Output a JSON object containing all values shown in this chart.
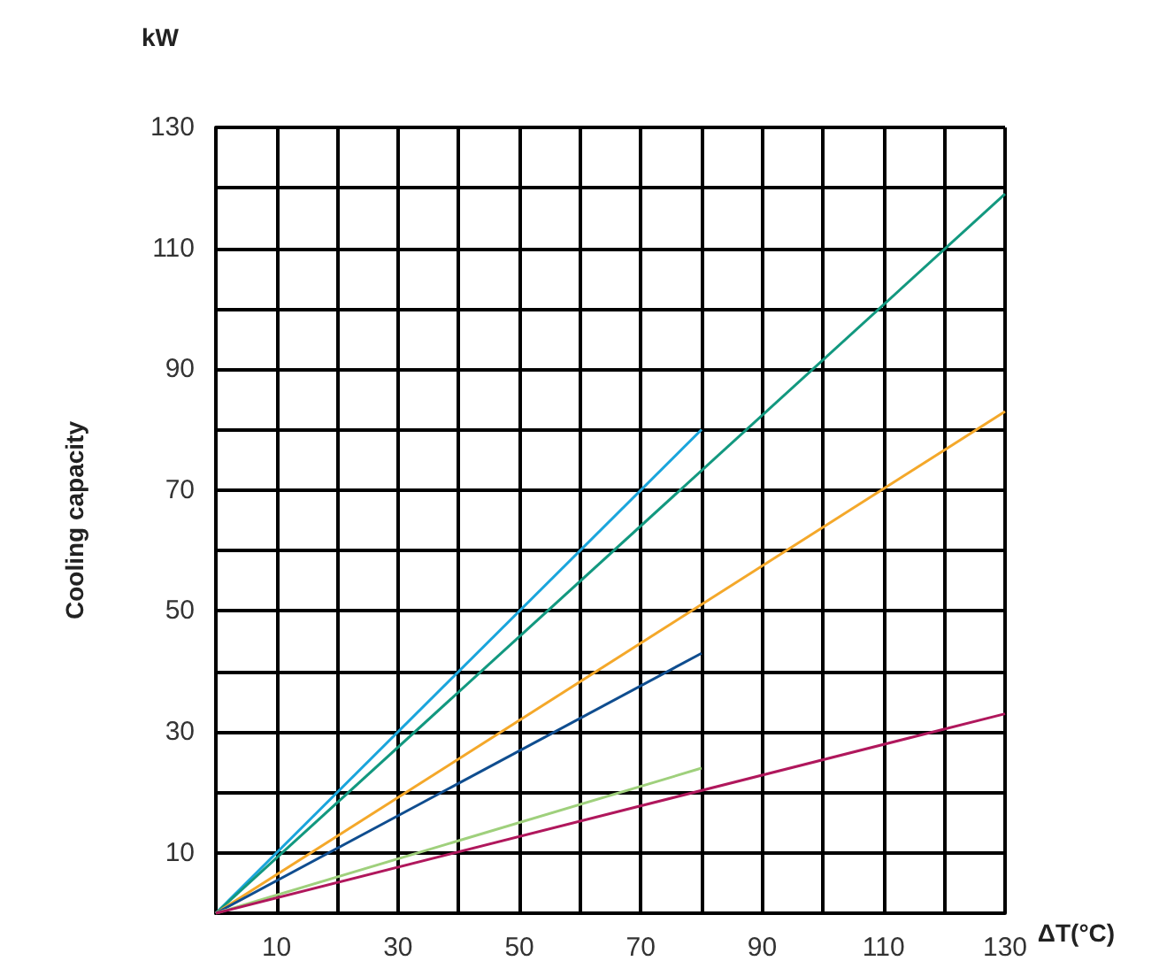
{
  "chart_data": {
    "type": "line",
    "xlabel": "ΔT(°C)",
    "ylabel": "Cooling capacity",
    "annotations": [
      "kW"
    ],
    "xlim": [
      0,
      130
    ],
    "ylim": [
      0,
      130
    ],
    "xticks": [
      {
        "value": 0,
        "label": null
      },
      10,
      {
        "value": 20,
        "label": null
      },
      30,
      {
        "value": 40,
        "label": null
      },
      50,
      {
        "value": 60,
        "label": null
      },
      70,
      {
        "value": 80,
        "label": null
      },
      90,
      {
        "value": 100,
        "label": null
      },
      110,
      {
        "value": 120,
        "label": null
      },
      130
    ],
    "yticks": [
      {
        "value": 0,
        "label": null
      },
      10,
      {
        "value": 20,
        "label": null
      },
      30,
      {
        "value": 40,
        "label": null
      },
      50,
      {
        "value": 60,
        "label": null
      },
      70,
      {
        "value": 80,
        "label": null
      },
      90,
      {
        "value": 100,
        "label": null
      },
      110,
      {
        "value": 120,
        "label": null
      },
      130
    ],
    "grid": true,
    "marker": "none",
    "line_style": "solid",
    "series": [
      {
        "color": "#1aa5dc",
        "x": [
          0,
          80
        ],
        "values": [
          0,
          80
        ]
      },
      {
        "color": "#12987f",
        "x": [
          0,
          130
        ],
        "values": [
          0,
          119
        ]
      },
      {
        "color": "#f4a82a",
        "x": [
          0,
          130
        ],
        "values": [
          0,
          83
        ]
      },
      {
        "color": "#0f4d8f",
        "x": [
          0,
          80
        ],
        "values": [
          0,
          43
        ]
      },
      {
        "color": "#9fd07c",
        "x": [
          0,
          80
        ],
        "values": [
          0,
          24
        ]
      },
      {
        "color": "#b0175c",
        "x": [
          0,
          130
        ],
        "values": [
          0,
          33
        ]
      }
    ]
  }
}
